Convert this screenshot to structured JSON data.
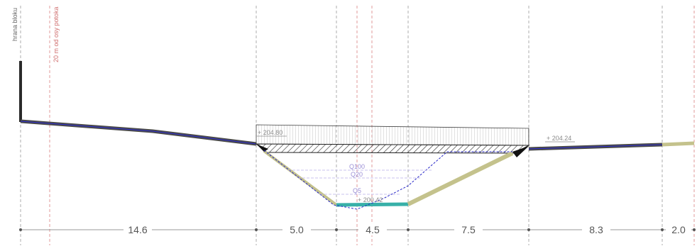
{
  "labels": {
    "block_edge": "hrana bloku",
    "stream_axis_offset": "20 m od osy potoka"
  },
  "levels": {
    "bridge_deck": "+ 204.80",
    "right_bank": "+ 204.24",
    "channel_bottom": "+ 200.42"
  },
  "flows": {
    "q100": "Q100",
    "q20": "Q20",
    "q5": "Q5"
  },
  "dimensions": [
    "14.6",
    "5.0",
    "4.5",
    "7.5",
    "8.3",
    "2.0"
  ],
  "colors": {
    "guide_gray": "#9a9a9a",
    "guide_red": "#d98080",
    "terrain": "#4a4a4a",
    "terrain_blue": "#2a2ad0",
    "grass": "#c4c28c",
    "water": "#38b0a8",
    "waterline": "#2727c8",
    "flow_lines": "#b9b0e8"
  }
}
